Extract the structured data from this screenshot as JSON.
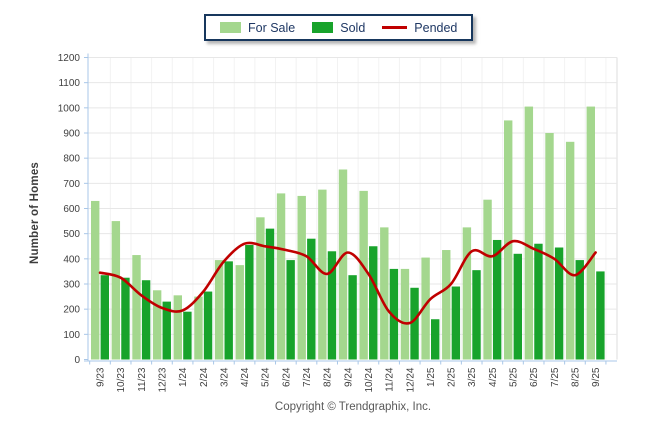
{
  "legend": {
    "border_color": "#17375D",
    "items": [
      {
        "label": "For Sale",
        "type": "swatch",
        "color": "#A4D78E"
      },
      {
        "label": "Sold",
        "type": "swatch",
        "color": "#18A32B"
      },
      {
        "label": "Pended",
        "type": "line",
        "color": "#C00000"
      }
    ]
  },
  "footer": {
    "text": "Copyright © Trendgraphix, Inc."
  },
  "chart_data": {
    "type": "bar",
    "title": "",
    "ylabel": "Number of Homes",
    "xlabel": "",
    "ylim": [
      0,
      1200
    ],
    "ytick_step": 100,
    "yticks": [
      0,
      100,
      200,
      300,
      400,
      500,
      600,
      700,
      800,
      900,
      1000,
      1100,
      1200
    ],
    "grid": "both",
    "legend_position": "top-center",
    "categories": [
      "9/23",
      "10/23",
      "11/23",
      "12/23",
      "1/24",
      "2/24",
      "3/24",
      "4/24",
      "5/24",
      "6/24",
      "7/24",
      "8/24",
      "9/24",
      "10/24",
      "11/24",
      "12/24",
      "1/25",
      "2/25",
      "3/25",
      "4/25",
      "5/25",
      "6/25",
      "7/25",
      "8/25",
      "9/25"
    ],
    "series": [
      {
        "name": "For Sale",
        "type": "bar",
        "color": "#A4D78E",
        "values": [
          630,
          550,
          415,
          275,
          255,
          250,
          395,
          375,
          565,
          660,
          650,
          675,
          755,
          670,
          525,
          360,
          405,
          435,
          525,
          635,
          950,
          1005,
          900,
          865,
          1005
        ]
      },
      {
        "name": "Sold",
        "type": "bar",
        "color": "#18A32B",
        "values": [
          335,
          325,
          315,
          230,
          190,
          270,
          390,
          455,
          520,
          395,
          480,
          430,
          335,
          450,
          360,
          285,
          160,
          290,
          355,
          475,
          420,
          460,
          445,
          395,
          350
        ]
      },
      {
        "name": "Pended",
        "type": "line",
        "color": "#C00000",
        "values": [
          345,
          325,
          255,
          205,
          195,
          270,
          390,
          460,
          450,
          435,
          410,
          340,
          425,
          340,
          190,
          145,
          240,
          300,
          430,
          410,
          470,
          440,
          400,
          335,
          425
        ]
      }
    ],
    "colors": {
      "axis": "#A9C7E8",
      "grid_h": "#E7E7E7",
      "grid_v": "#F2F2F2",
      "plot_right_border": "#DDDDDD",
      "tick_text": "#404040"
    }
  }
}
